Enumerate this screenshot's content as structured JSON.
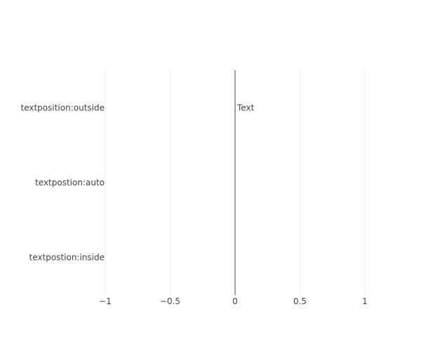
{
  "chart_data": {
    "type": "bar",
    "orientation": "horizontal",
    "categories": [
      "textpostion:inside",
      "textpostion:auto",
      "textposition:outside"
    ],
    "values": [
      0,
      0,
      0
    ],
    "data_labels": [
      "",
      "",
      "Text"
    ],
    "title": "",
    "xlabel": "",
    "ylabel": "",
    "xlim": [
      -1,
      1.3
    ],
    "xticks": [
      -1,
      -0.5,
      0,
      0.5,
      1
    ],
    "xtick_labels": [
      "−1",
      "−0.5",
      "0",
      "0.5",
      "1"
    ],
    "grid": true,
    "zeroline": true,
    "legend": "none",
    "colors": {
      "grid": "#eeeeee",
      "zeroline": "#444444",
      "text": "#444444",
      "background": "#ffffff"
    }
  }
}
